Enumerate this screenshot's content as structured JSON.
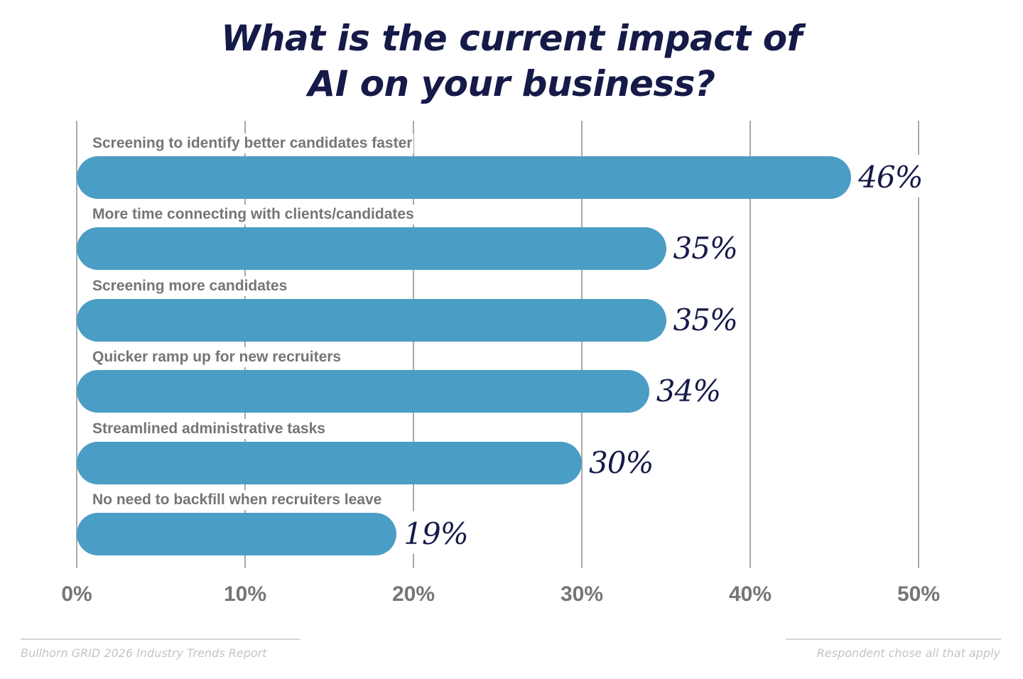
{
  "title": {
    "line1": "What is the current impact of",
    "line2": "AI on your business?"
  },
  "footer": {
    "source": "Bullhorn GRID 2026 Industry Trends Report",
    "note": "Respondent chose all that apply"
  },
  "colors": {
    "bar": "#4a9dc5",
    "title": "#151a48",
    "value_label": "#151a48",
    "category_label": "#757575",
    "gridline": "#a9a9a9",
    "footer": "#c4c4c4"
  },
  "axis": {
    "ticks": [
      "0%",
      "10%",
      "20%",
      "30%",
      "40%",
      "50%"
    ]
  },
  "rows": [
    {
      "label": "Screening to identify better candidates faster",
      "value": 46,
      "value_label": "46%"
    },
    {
      "label": "More time connecting with clients/candidates",
      "value": 35,
      "value_label": "35%"
    },
    {
      "label": "Screening more candidates",
      "value": 35,
      "value_label": "35%"
    },
    {
      "label": "Quicker ramp up for new recruiters",
      "value": 34,
      "value_label": "34%"
    },
    {
      "label": "Streamlined administrative tasks",
      "value": 30,
      "value_label": "30%"
    },
    {
      "label": "No need to backfill when recruiters leave",
      "value": 19,
      "value_label": "19%"
    }
  ],
  "chart_data": {
    "type": "bar",
    "orientation": "horizontal",
    "title": "What is the current impact of AI on your business?",
    "categories": [
      "Screening to identify better candidates faster",
      "More time connecting with clients/candidates",
      "Screening more candidates",
      "Quicker ramp up for new recruiters",
      "Streamlined administrative tasks",
      "No need to backfill when recruiters leave"
    ],
    "values": [
      46,
      35,
      35,
      34,
      30,
      19
    ],
    "data_labels": [
      "46%",
      "35%",
      "35%",
      "34%",
      "30%",
      "19%"
    ],
    "xlabel": "",
    "ylabel": "",
    "xlim": [
      0,
      50
    ],
    "x_ticks": [
      "0%",
      "10%",
      "20%",
      "30%",
      "40%",
      "50%"
    ],
    "grid": true,
    "legend": null,
    "annotations": [
      "Bullhorn GRID 2026 Industry Trends Report",
      "Respondent chose all that apply"
    ]
  }
}
